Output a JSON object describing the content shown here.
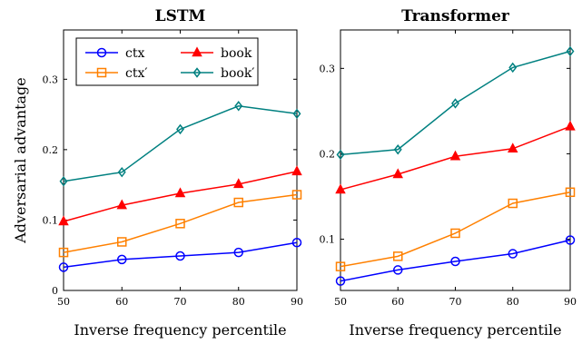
{
  "chart_data": [
    {
      "type": "line",
      "title": "LSTM",
      "xlabel": "Inverse frequency percentile",
      "ylabel": "Adversarial advantage",
      "x": [
        50,
        60,
        70,
        80,
        90
      ],
      "xlim": [
        50,
        90
      ],
      "ylim": [
        0,
        0.37
      ],
      "yticks": [
        0,
        0.1,
        0.2,
        0.3
      ],
      "ytick_labels": [
        "0",
        "0.1",
        "0.2",
        "0.3"
      ],
      "grid": false,
      "legend": "top-left",
      "series": [
        {
          "name": "ctx",
          "values": [
            0.033,
            0.044,
            0.049,
            0.054,
            0.068
          ],
          "color": "#0000ff",
          "marker": "circle"
        },
        {
          "name": "ctx′",
          "values": [
            0.054,
            0.069,
            0.095,
            0.125,
            0.136
          ],
          "color": "#ff8000",
          "marker": "square"
        },
        {
          "name": "book",
          "values": [
            0.098,
            0.121,
            0.138,
            0.151,
            0.169
          ],
          "color": "#ff0000",
          "marker": "triangle"
        },
        {
          "name": "book′",
          "values": [
            0.155,
            0.168,
            0.229,
            0.262,
            0.251
          ],
          "color": "#008080",
          "marker": "diamond"
        }
      ]
    },
    {
      "type": "line",
      "title": "Transformer",
      "xlabel": "Inverse frequency percentile",
      "ylabel": "",
      "x": [
        50,
        60,
        70,
        80,
        90
      ],
      "xlim": [
        50,
        90
      ],
      "ylim": [
        0.04,
        0.345
      ],
      "yticks": [
        0.1,
        0.2,
        0.3
      ],
      "ytick_labels": [
        "0.1",
        "0.2",
        "0.3"
      ],
      "grid": false,
      "legend": "",
      "series": [
        {
          "name": "ctx",
          "values": [
            0.051,
            0.064,
            0.074,
            0.083,
            0.099
          ],
          "color": "#0000ff",
          "marker": "circle"
        },
        {
          "name": "ctx′",
          "values": [
            0.068,
            0.08,
            0.107,
            0.142,
            0.155
          ],
          "color": "#ff8000",
          "marker": "square"
        },
        {
          "name": "book",
          "values": [
            0.158,
            0.176,
            0.197,
            0.206,
            0.232
          ],
          "color": "#ff0000",
          "marker": "triangle"
        },
        {
          "name": "book′",
          "values": [
            0.199,
            0.205,
            0.259,
            0.301,
            0.32
          ],
          "color": "#008080",
          "marker": "diamond"
        }
      ]
    }
  ],
  "legend_layout": [
    [
      "ctx",
      "book"
    ],
    [
      "ctx′",
      "book′"
    ]
  ]
}
